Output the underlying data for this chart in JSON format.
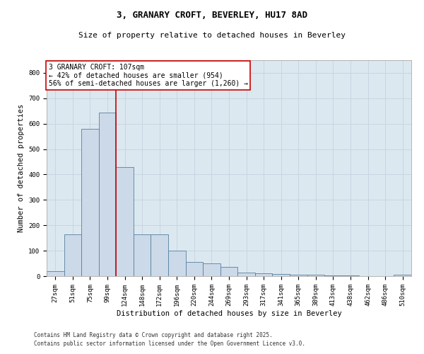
{
  "title_line1": "3, GRANARY CROFT, BEVERLEY, HU17 8AD",
  "title_line2": "Size of property relative to detached houses in Beverley",
  "xlabel": "Distribution of detached houses by size in Beverley",
  "ylabel": "Number of detached properties",
  "categories": [
    "27sqm",
    "51sqm",
    "75sqm",
    "99sqm",
    "124sqm",
    "148sqm",
    "172sqm",
    "196sqm",
    "220sqm",
    "244sqm",
    "269sqm",
    "293sqm",
    "317sqm",
    "341sqm",
    "365sqm",
    "389sqm",
    "413sqm",
    "438sqm",
    "462sqm",
    "486sqm",
    "510sqm"
  ],
  "values": [
    20,
    165,
    580,
    645,
    430,
    165,
    165,
    100,
    55,
    50,
    35,
    15,
    10,
    8,
    5,
    5,
    3,
    2,
    1,
    0,
    5
  ],
  "bar_color": "#ccd9e8",
  "bar_edge_color": "#5580a0",
  "grid_color": "#c8d4e0",
  "background_color": "#dce8f0",
  "vline_color": "#cc0000",
  "annotation_text": "3 GRANARY CROFT: 107sqm\n← 42% of detached houses are smaller (954)\n56% of semi-detached houses are larger (1,260) →",
  "annotation_box_color": "#ffffff",
  "annotation_box_edge_color": "#cc0000",
  "footer_line1": "Contains HM Land Registry data © Crown copyright and database right 2025.",
  "footer_line2": "Contains public sector information licensed under the Open Government Licence v3.0.",
  "ylim": [
    0,
    850
  ],
  "yticks": [
    0,
    100,
    200,
    300,
    400,
    500,
    600,
    700,
    800
  ],
  "title1_fontsize": 9,
  "title2_fontsize": 8,
  "tick_fontsize": 6.5,
  "label_fontsize": 7.5,
  "annotation_fontsize": 7,
  "footer_fontsize": 5.5
}
